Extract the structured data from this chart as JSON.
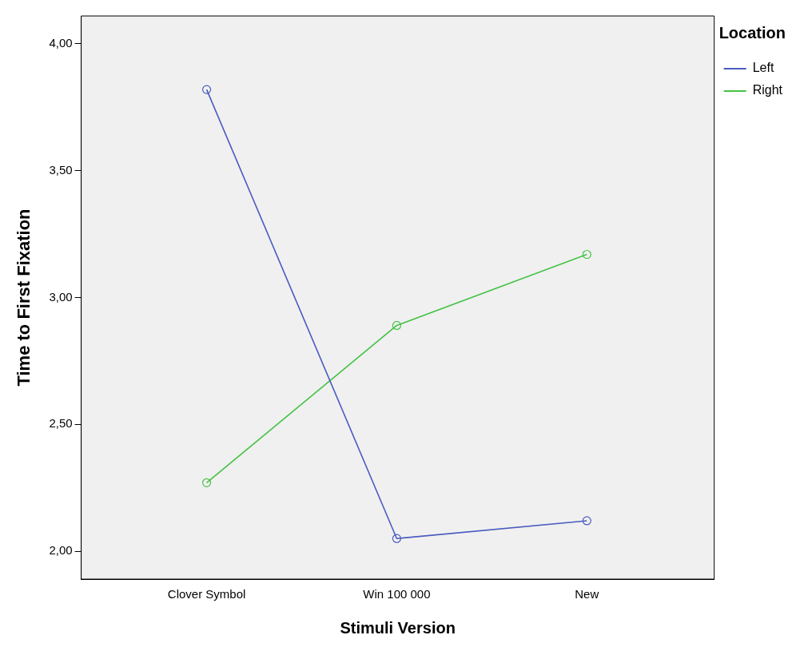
{
  "chart_data": {
    "type": "line",
    "xlabel": "Stimuli Version",
    "ylabel": "Time to First Fixation",
    "legend_title": "Location",
    "categories": [
      "Clover Symbol",
      "Win 100 000",
      "New"
    ],
    "series": [
      {
        "name": "Left",
        "color": "#4a5bbf",
        "values": [
          3.82,
          2.05,
          2.12
        ]
      },
      {
        "name": "Right",
        "color": "#44c244",
        "values": [
          2.27,
          2.89,
          3.17
        ]
      }
    ],
    "ylim": [
      1.89,
      4.11
    ],
    "yticks": [
      {
        "value": 2,
        "label": "2,00"
      },
      {
        "value": 2.5,
        "label": "2,50"
      },
      {
        "value": 3,
        "label": "3,00"
      },
      {
        "value": 3.5,
        "label": "3,50"
      },
      {
        "value": 4,
        "label": "4,00"
      }
    ],
    "grid": false,
    "legend": "right",
    "marker": "circle",
    "line_style": "solid"
  }
}
